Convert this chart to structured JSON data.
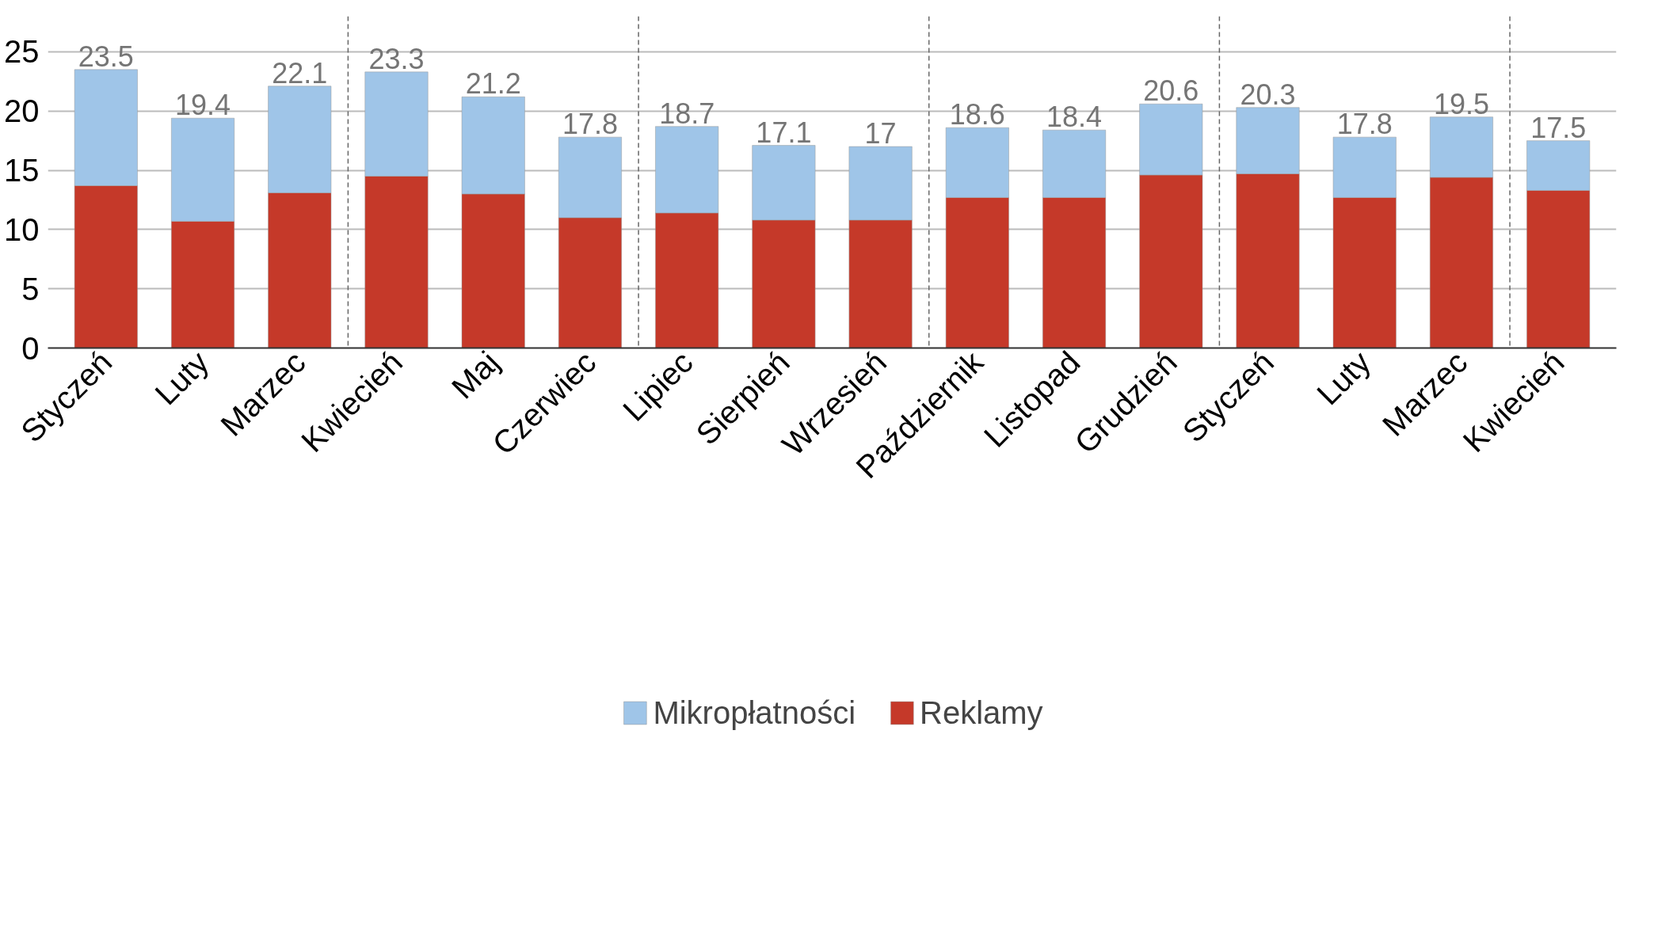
{
  "chart_data": {
    "type": "bar",
    "stacked": true,
    "categories": [
      "Styczeń",
      "Luty",
      "Marzec",
      "Kwiecień",
      "Maj",
      "Czerwiec",
      "Lipiec",
      "Sierpień",
      "Wrzesień",
      "Październik",
      "Listopad",
      "Grudzień",
      "Styczeń",
      "Luty",
      "Marzec",
      "Kwiecień"
    ],
    "series": [
      {
        "name": "Reklamy",
        "color": "#c53929",
        "values": [
          13.7,
          10.7,
          13.1,
          14.5,
          13.0,
          11.0,
          11.4,
          10.8,
          10.8,
          12.7,
          12.7,
          14.6,
          14.7,
          12.7,
          14.4,
          13.3
        ]
      },
      {
        "name": "Mikropłatności",
        "color": "#9fc5e8",
        "values": [
          9.8,
          8.7,
          9.0,
          8.8,
          8.2,
          6.8,
          7.3,
          6.3,
          6.2,
          5.9,
          5.7,
          6.0,
          5.6,
          5.1,
          5.1,
          4.2
        ]
      }
    ],
    "totals": [
      "23.5",
      "19.4",
      "22.1",
      "23.3",
      "21.2",
      "17.8",
      "18.7",
      "17.1",
      "17",
      "18.6",
      "18.4",
      "20.6",
      "20.3",
      "17.8",
      "19.5",
      "17.5"
    ],
    "ylim": [
      0,
      28
    ],
    "yticks": [
      0,
      5,
      10,
      15,
      20,
      25
    ],
    "grid": "y",
    "legend": "bottom"
  }
}
